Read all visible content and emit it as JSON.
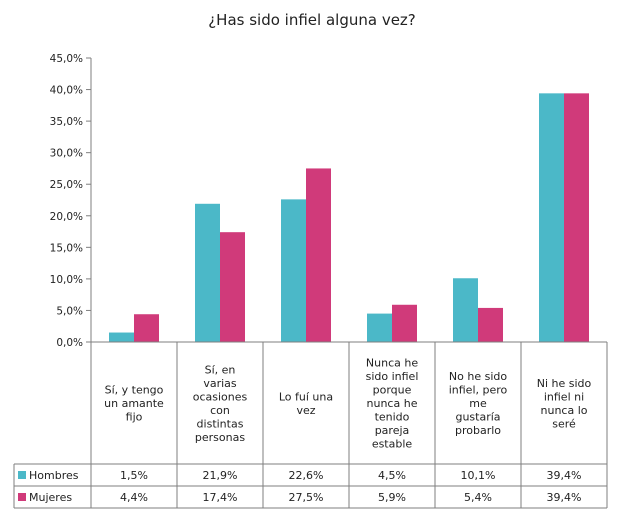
{
  "chart_data": {
    "type": "bar",
    "title": "¿Has sido infiel alguna vez?",
    "categories": [
      [
        "Sí, y tengo",
        "un amante",
        "fijo"
      ],
      [
        "Sí, en",
        "varias",
        "ocasiones",
        "con",
        "distintas",
        "personas"
      ],
      [
        "Lo fuí una",
        "vez"
      ],
      [
        "Nunca he",
        "sido infiel",
        "porque",
        "nunca he",
        "tenido",
        "pareja",
        "estable"
      ],
      [
        "No he sido",
        "infiel, pero",
        "me",
        "gustaría",
        "probarlo"
      ],
      [
        "Ni he sido",
        "infiel ni",
        "nunca lo",
        "seré"
      ]
    ],
    "ylim": [
      0,
      45
    ],
    "yticks": [
      "0,0%",
      "5,0%",
      "10,0%",
      "15,0%",
      "20,0%",
      "25,0%",
      "30,0%",
      "35,0%",
      "40,0%",
      "45,0%"
    ],
    "series": [
      {
        "name": "Hombres",
        "color": "#4BB8C8",
        "values": [
          1.5,
          21.9,
          22.6,
          4.5,
          10.1,
          39.4
        ],
        "labels": [
          "1,5%",
          "21,9%",
          "22,6%",
          "4,5%",
          "10,1%",
          "39,4%"
        ]
      },
      {
        "name": "Mujeres",
        "color": "#D03A7A",
        "values": [
          4.4,
          17.4,
          27.5,
          5.9,
          5.4,
          39.4
        ],
        "labels": [
          "4,4%",
          "17,4%",
          "27,5%",
          "5,9%",
          "5,4%",
          "39,4%"
        ]
      }
    ],
    "grid": false,
    "legend": "data-table"
  }
}
